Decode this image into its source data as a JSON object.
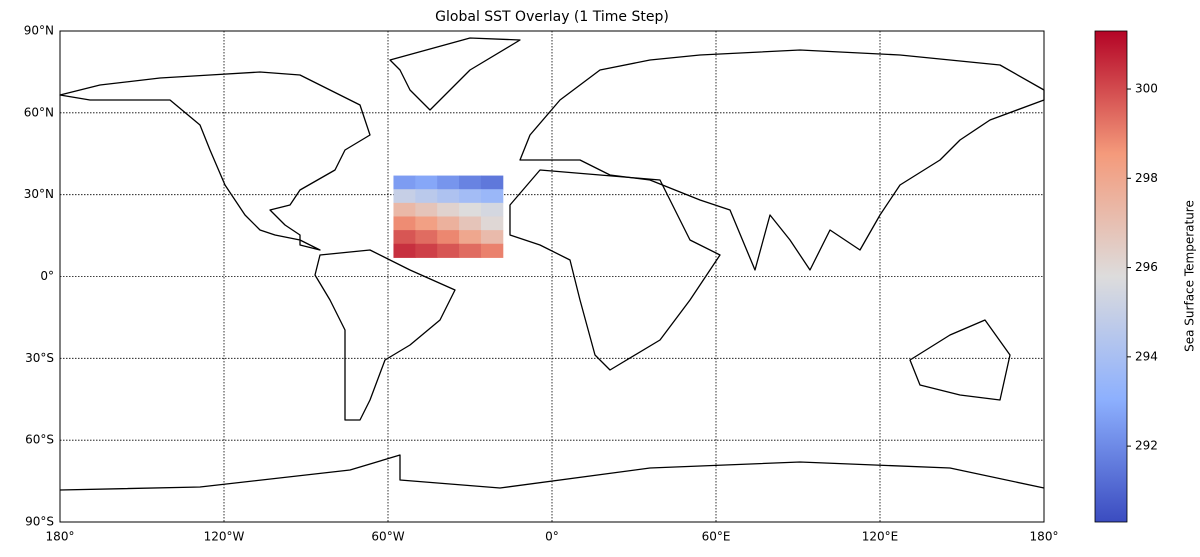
{
  "chart_data": {
    "type": "sst-map",
    "title": "Global SST Overlay (1 Time Step)",
    "xlim": [
      -180,
      180
    ],
    "ylim": [
      -90,
      90
    ],
    "xticks": [
      {
        "value": -180,
        "label": "180°"
      },
      {
        "value": -120,
        "label": "120°W"
      },
      {
        "value": -60,
        "label": "60°W"
      },
      {
        "value": 0,
        "label": "0°"
      },
      {
        "value": 60,
        "label": "60°E"
      },
      {
        "value": 120,
        "label": "120°E"
      },
      {
        "value": 180,
        "label": "180°"
      }
    ],
    "yticks": [
      {
        "value": -90,
        "label": "90°S"
      },
      {
        "value": -60,
        "label": "60°S"
      },
      {
        "value": -30,
        "label": "30°S"
      },
      {
        "value": 0,
        "label": "0°"
      },
      {
        "value": 30,
        "label": "30°N"
      },
      {
        "value": 60,
        "label": "60°N"
      },
      {
        "value": 90,
        "label": "90°N"
      }
    ],
    "grid": true,
    "colormap": "coolwarm",
    "colorbar": {
      "label": "Sea Surface Temperature",
      "lim": [
        290.3,
        301.3
      ],
      "ticks": [
        292,
        294,
        296,
        298,
        300
      ]
    },
    "lon_edges": [
      -58,
      -50,
      -42,
      -34,
      -26,
      -18
    ],
    "lat_edges": [
      37,
      32,
      27,
      22,
      17,
      12,
      7
    ],
    "values": [
      [
        292.5,
        292.8,
        292.3,
        291.8,
        291.5
      ],
      [
        295.0,
        294.6,
        294.2,
        293.8,
        293.5
      ],
      [
        297.3,
        296.8,
        296.2,
        295.8,
        295.5
      ],
      [
        298.8,
        298.3,
        297.6,
        296.8,
        296.0
      ],
      [
        299.8,
        299.4,
        298.9,
        298.0,
        297.2
      ],
      [
        300.5,
        300.2,
        299.8,
        299.4,
        299.0
      ]
    ]
  }
}
